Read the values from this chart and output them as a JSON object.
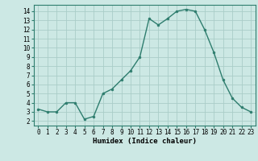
{
  "x": [
    0,
    1,
    2,
    3,
    4,
    5,
    6,
    7,
    8,
    9,
    10,
    11,
    12,
    13,
    14,
    15,
    16,
    17,
    18,
    19,
    20,
    21,
    22,
    23
  ],
  "y": [
    3.3,
    3.0,
    3.0,
    4.0,
    4.0,
    2.2,
    2.5,
    5.0,
    5.5,
    6.5,
    7.5,
    9.0,
    13.2,
    12.5,
    13.2,
    14.0,
    14.2,
    14.0,
    12.0,
    9.5,
    6.5,
    4.5,
    3.5,
    3.0
  ],
  "xlabel": "Humidex (Indice chaleur)",
  "xlim": [
    -0.5,
    23.5
  ],
  "ylim": [
    1.5,
    14.7
  ],
  "yticks": [
    2,
    3,
    4,
    5,
    6,
    7,
    8,
    9,
    10,
    11,
    12,
    13,
    14
  ],
  "xticks": [
    0,
    1,
    2,
    3,
    4,
    5,
    6,
    7,
    8,
    9,
    10,
    11,
    12,
    13,
    14,
    15,
    16,
    17,
    18,
    19,
    20,
    21,
    22,
    23
  ],
  "line_color": "#2e7d6e",
  "marker_color": "#2e7d6e",
  "bg_color": "#cce8e4",
  "grid_color": "#aacdc8",
  "label_fontsize": 6.5,
  "tick_fontsize": 5.5
}
